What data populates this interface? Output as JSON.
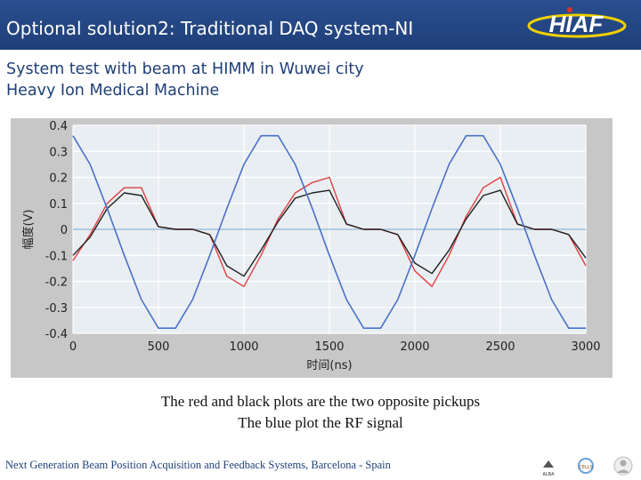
{
  "header": {
    "title": "Optional solution2: Traditional DAQ system-NI",
    "logo_text": "HIAF"
  },
  "subtitle": {
    "line1": "System test with  beam at HIMM in Wuwei city",
    "line2": "Heavy Ion Medical Machine"
  },
  "chart_data": {
    "type": "line",
    "xlabel": "时间(ns)",
    "ylabel": "幅度(V)",
    "xlim": [
      0,
      3000
    ],
    "ylim": [
      -0.4,
      0.4
    ],
    "xticks": [
      0,
      500,
      1000,
      1500,
      2000,
      2500,
      3000
    ],
    "yticks": [
      0.4,
      0.3,
      0.2,
      0.1,
      0,
      -0.1,
      -0.2,
      -0.3,
      -0.4
    ],
    "grid": true,
    "legend": "none",
    "x": [
      0,
      100,
      200,
      300,
      400,
      500,
      600,
      700,
      800,
      900,
      1000,
      1100,
      1200,
      1300,
      1400,
      1500,
      1600,
      1700,
      1800,
      1900,
      2000,
      2100,
      2200,
      2300,
      2400,
      2500,
      2600,
      2700,
      2800,
      2900,
      3000
    ],
    "series": [
      {
        "color": "#e04040",
        "values": [
          -0.12,
          -0.02,
          0.1,
          0.16,
          0.16,
          0.01,
          0.0,
          0.0,
          -0.02,
          -0.18,
          -0.22,
          -0.1,
          0.04,
          0.14,
          0.18,
          0.2,
          0.02,
          0.0,
          0.0,
          -0.02,
          -0.16,
          -0.22,
          -0.1,
          0.05,
          0.16,
          0.2,
          0.02,
          0.0,
          0.0,
          -0.02,
          -0.14
        ]
      },
      {
        "color": "#202020",
        "values": [
          -0.1,
          -0.03,
          0.08,
          0.14,
          0.13,
          0.01,
          0.0,
          0.0,
          -0.02,
          -0.14,
          -0.18,
          -0.08,
          0.03,
          0.12,
          0.14,
          0.15,
          0.02,
          0.0,
          0.0,
          -0.02,
          -0.13,
          -0.17,
          -0.08,
          0.04,
          0.13,
          0.15,
          0.02,
          0.0,
          0.0,
          -0.02,
          -0.11
        ]
      },
      {
        "color": "#4a72c8",
        "values": [
          0.36,
          0.25,
          0.08,
          -0.1,
          -0.27,
          -0.38,
          -0.38,
          -0.27,
          -0.1,
          0.08,
          0.25,
          0.36,
          0.36,
          0.25,
          0.08,
          -0.1,
          -0.27,
          -0.38,
          -0.38,
          -0.27,
          -0.1,
          0.08,
          0.25,
          0.36,
          0.36,
          0.25,
          0.08,
          -0.1,
          -0.27,
          -0.38,
          -0.38
        ]
      }
    ]
  },
  "caption": {
    "line1": "The red and black plots are the two opposite pickups",
    "line2": "The blue plot the RF signal"
  },
  "footer": {
    "text": "Next Generation Beam Position Acquisition and Feedback Systems, Barcelona - Spain",
    "logo_a": "ALBA",
    "logo_b": "CELLS"
  },
  "colors": {
    "title_bar": "#1f3f78",
    "title_text": "#ffffff",
    "subtitle_text": "#1f3f78",
    "plot_bg": "#e9eef2",
    "frame_bg": "#c7c7c7"
  }
}
